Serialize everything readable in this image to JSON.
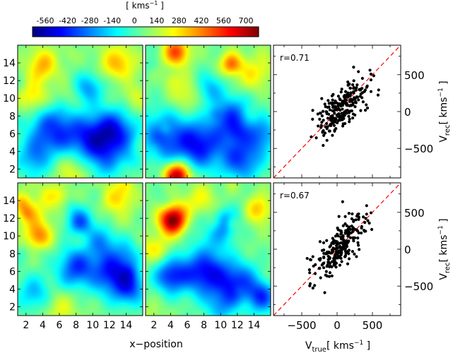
{
  "colorbar": {
    "label_prefix": "[ kms",
    "label_exp": "−1",
    "label_suffix": " ]",
    "ticks": [
      "-560",
      "-420",
      "-280",
      "-140",
      "0",
      "140",
      "280",
      "420",
      "560",
      "700"
    ],
    "tick_values": [
      -560,
      -420,
      -280,
      -140,
      0,
      140,
      280,
      420,
      560,
      700
    ],
    "range": [
      -640,
      780
    ],
    "colormap": "jet"
  },
  "chart_data": [
    {
      "type": "heatmap",
      "panel": "top-left",
      "xlim": [
        1,
        16
      ],
      "ylim": [
        1,
        16
      ],
      "yticks": [
        2,
        4,
        6,
        8,
        10,
        12,
        14
      ],
      "base_value": 60,
      "features": [
        {
          "x": 5,
          "y": 6.3,
          "amp": -480,
          "w": 1.8
        },
        {
          "x": 12.5,
          "y": 6.2,
          "amp": -520,
          "w": 1.9
        },
        {
          "x": 9,
          "y": 5.6,
          "amp": -360,
          "w": 1.8
        },
        {
          "x": 2.5,
          "y": 3.2,
          "amp": -230,
          "w": 1.6
        },
        {
          "x": 9.5,
          "y": 11.2,
          "amp": -300,
          "w": 1.2
        },
        {
          "x": 11,
          "y": 3,
          "amp": -260,
          "w": 1.8
        },
        {
          "x": 4,
          "y": 13.8,
          "amp": 280,
          "w": 1.3
        },
        {
          "x": 13,
          "y": 14,
          "amp": 250,
          "w": 1.5
        },
        {
          "x": 2.8,
          "y": 10.2,
          "amp": 230,
          "w": 1.2
        },
        {
          "x": 8,
          "y": 1.8,
          "amp": 200,
          "w": 1.6
        },
        {
          "x": 14.5,
          "y": 10,
          "amp": 160,
          "w": 1.4
        }
      ]
    },
    {
      "type": "heatmap",
      "panel": "top-middle",
      "xlim": [
        1,
        16
      ],
      "ylim": [
        1,
        16
      ],
      "base_value": 60,
      "features": [
        {
          "x": 3,
          "y": 5.5,
          "amp": -380,
          "w": 2.2
        },
        {
          "x": 7.5,
          "y": 4.8,
          "amp": -480,
          "w": 2
        },
        {
          "x": 11.5,
          "y": 7.8,
          "amp": -420,
          "w": 1.7
        },
        {
          "x": 12.5,
          "y": 3.2,
          "amp": -420,
          "w": 1.8
        },
        {
          "x": 8.5,
          "y": 11,
          "amp": -280,
          "w": 1.3
        },
        {
          "x": 15,
          "y": 6,
          "amp": -300,
          "w": 1.4
        },
        {
          "x": 4.7,
          "y": 15.2,
          "amp": 450,
          "w": 1.1
        },
        {
          "x": 11.3,
          "y": 13.8,
          "amp": 420,
          "w": 0.9
        },
        {
          "x": 4.8,
          "y": 1.3,
          "amp": 720,
          "w": 1.1
        },
        {
          "x": 14.5,
          "y": 13.5,
          "amp": 230,
          "w": 1.2
        },
        {
          "x": 6,
          "y": 10.5,
          "amp": 200,
          "w": 1.4
        }
      ]
    },
    {
      "type": "scatter",
      "panel": "top-right",
      "annotation": "r=0.71",
      "correlation": 0.71,
      "n_points": 240,
      "xlim": [
        -900,
        900
      ],
      "ylim": [
        -900,
        900
      ],
      "xticks": [
        -500,
        0,
        500
      ],
      "yticks": [
        -500,
        0,
        500
      ],
      "tick_labels": [
        "−500",
        "0",
        "500"
      ],
      "x_mean": 50,
      "x_sd": 190,
      "reference_line": "y=x",
      "ylabel": "V",
      "ylabel_sub": "rec",
      "ylabel_unit": "[ kms",
      "ylabel_exp": "−1",
      "ylabel_close": " ]"
    },
    {
      "type": "heatmap",
      "panel": "bottom-left",
      "xlim": [
        1,
        16
      ],
      "ylim": [
        1,
        16
      ],
      "xlabel": "x−position",
      "xticks": [
        2,
        4,
        6,
        8,
        10,
        12,
        14
      ],
      "yticks": [
        2,
        4,
        6,
        8,
        10,
        12,
        14
      ],
      "base_value": 60,
      "features": [
        {
          "x": 8.5,
          "y": 11.5,
          "amp": -420,
          "w": 1.1
        },
        {
          "x": 12.5,
          "y": 6,
          "amp": -500,
          "w": 1.9
        },
        {
          "x": 8,
          "y": 6.5,
          "amp": -420,
          "w": 1.6
        },
        {
          "x": 3,
          "y": 3.5,
          "amp": -260,
          "w": 1.5
        },
        {
          "x": 14.5,
          "y": 4,
          "amp": -320,
          "w": 1.4
        },
        {
          "x": 11,
          "y": 9.5,
          "amp": -250,
          "w": 1.2
        },
        {
          "x": 3.5,
          "y": 10,
          "amp": 350,
          "w": 1.1
        },
        {
          "x": 13,
          "y": 14.5,
          "amp": 280,
          "w": 1.3
        },
        {
          "x": 2.5,
          "y": 12.5,
          "amp": 200,
          "w": 1.2
        },
        {
          "x": 6,
          "y": 1.8,
          "amp": 150,
          "w": 1.6
        },
        {
          "x": 5,
          "y": 14.5,
          "amp": 160,
          "w": 1.2
        }
      ]
    },
    {
      "type": "heatmap",
      "panel": "bottom-middle",
      "xlim": [
        1,
        16
      ],
      "ylim": [
        1,
        16
      ],
      "xticks": [
        2,
        4,
        6,
        8,
        10,
        12,
        14
      ],
      "base_value": 60,
      "features": [
        {
          "x": 4.2,
          "y": 11.8,
          "amp": 720,
          "w": 1.1
        },
        {
          "x": 8,
          "y": 6,
          "amp": -520,
          "w": 1.9
        },
        {
          "x": 4,
          "y": 5.5,
          "amp": -450,
          "w": 1.4
        },
        {
          "x": 12,
          "y": 4.5,
          "amp": -450,
          "w": 1.8
        },
        {
          "x": 15,
          "y": 3,
          "amp": -380,
          "w": 1.3
        },
        {
          "x": 10.5,
          "y": 11,
          "amp": -260,
          "w": 1.1
        },
        {
          "x": 14.5,
          "y": 13,
          "amp": 280,
          "w": 1.1
        },
        {
          "x": 7.5,
          "y": 14,
          "amp": 180,
          "w": 1.3
        },
        {
          "x": 2.5,
          "y": 8.5,
          "amp": 160,
          "w": 1.2
        },
        {
          "x": 10,
          "y": 2,
          "amp": -200,
          "w": 1.4
        }
      ]
    },
    {
      "type": "scatter",
      "panel": "bottom-right",
      "annotation": "r=0.67",
      "correlation": 0.67,
      "n_points": 250,
      "xlim": [
        -900,
        900
      ],
      "ylim": [
        -900,
        900
      ],
      "xticks": [
        -500,
        0,
        500
      ],
      "yticks": [
        -500,
        0,
        500
      ],
      "tick_labels": [
        "−500",
        "0",
        "500"
      ],
      "x_mean": 50,
      "x_sd": 190,
      "reference_line": "y=x",
      "xlabel": "V",
      "xlabel_sub": "true",
      "xlabel_unit": "[ kms",
      "xlabel_exp": "−1",
      "xlabel_close": " ]",
      "ylabel": "V",
      "ylabel_sub": "rec",
      "ylabel_unit": "[ kms",
      "ylabel_exp": "−1",
      "ylabel_close": " ]"
    }
  ]
}
